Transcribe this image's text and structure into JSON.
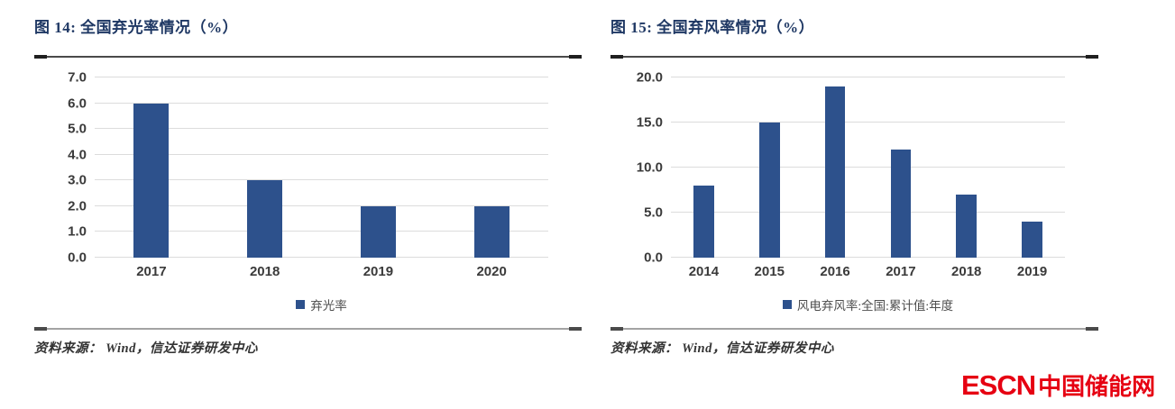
{
  "panels": [
    {
      "source": "资料来源： Wind，信达证券研发中心"
    },
    {
      "source": "资料来源： Wind，信达证券研发中心"
    }
  ],
  "chart_data": [
    {
      "type": "bar",
      "title": "图 14:  全国弃光率情况（%）",
      "categories": [
        "2017",
        "2018",
        "2019",
        "2020"
      ],
      "values": [
        6.0,
        3.0,
        2.0,
        2.0
      ],
      "xlabel": "",
      "ylabel": "",
      "ylim": [
        0,
        7
      ],
      "yticks": [
        0,
        1,
        2,
        3,
        4,
        5,
        6,
        7
      ],
      "ytick_labels": [
        "0.0",
        "1.0",
        "2.0",
        "3.0",
        "4.0",
        "5.0",
        "6.0",
        "7.0"
      ],
      "legend": [
        "弃光率"
      ],
      "legend_position": "bottom",
      "grid": true,
      "bar_color": "#2d518c"
    },
    {
      "type": "bar",
      "title": "图 15:  全国弃风率情况（%）",
      "categories": [
        "2014",
        "2015",
        "2016",
        "2017",
        "2018",
        "2019"
      ],
      "values": [
        8.0,
        15.0,
        19.0,
        12.0,
        7.0,
        4.0
      ],
      "xlabel": "",
      "ylabel": "",
      "ylim": [
        0,
        20
      ],
      "yticks": [
        0,
        5,
        10,
        15,
        20
      ],
      "ytick_labels": [
        "0.0",
        "5.0",
        "10.0",
        "15.0",
        "20.0"
      ],
      "legend": [
        "风电弃风率:全国:累计值:年度"
      ],
      "legend_position": "bottom",
      "grid": true,
      "bar_color": "#2d518c"
    }
  ],
  "footer_logo": {
    "latin": "ESCN",
    "cn": "中国储能网",
    "color": "#e60012"
  },
  "colors": {
    "title": "#1f3864",
    "bar": "#2d518c",
    "gridline": "#dcdcdc",
    "axis_text": "#3a3a3a",
    "source_text": "#333333",
    "logo_red": "#e60012"
  }
}
